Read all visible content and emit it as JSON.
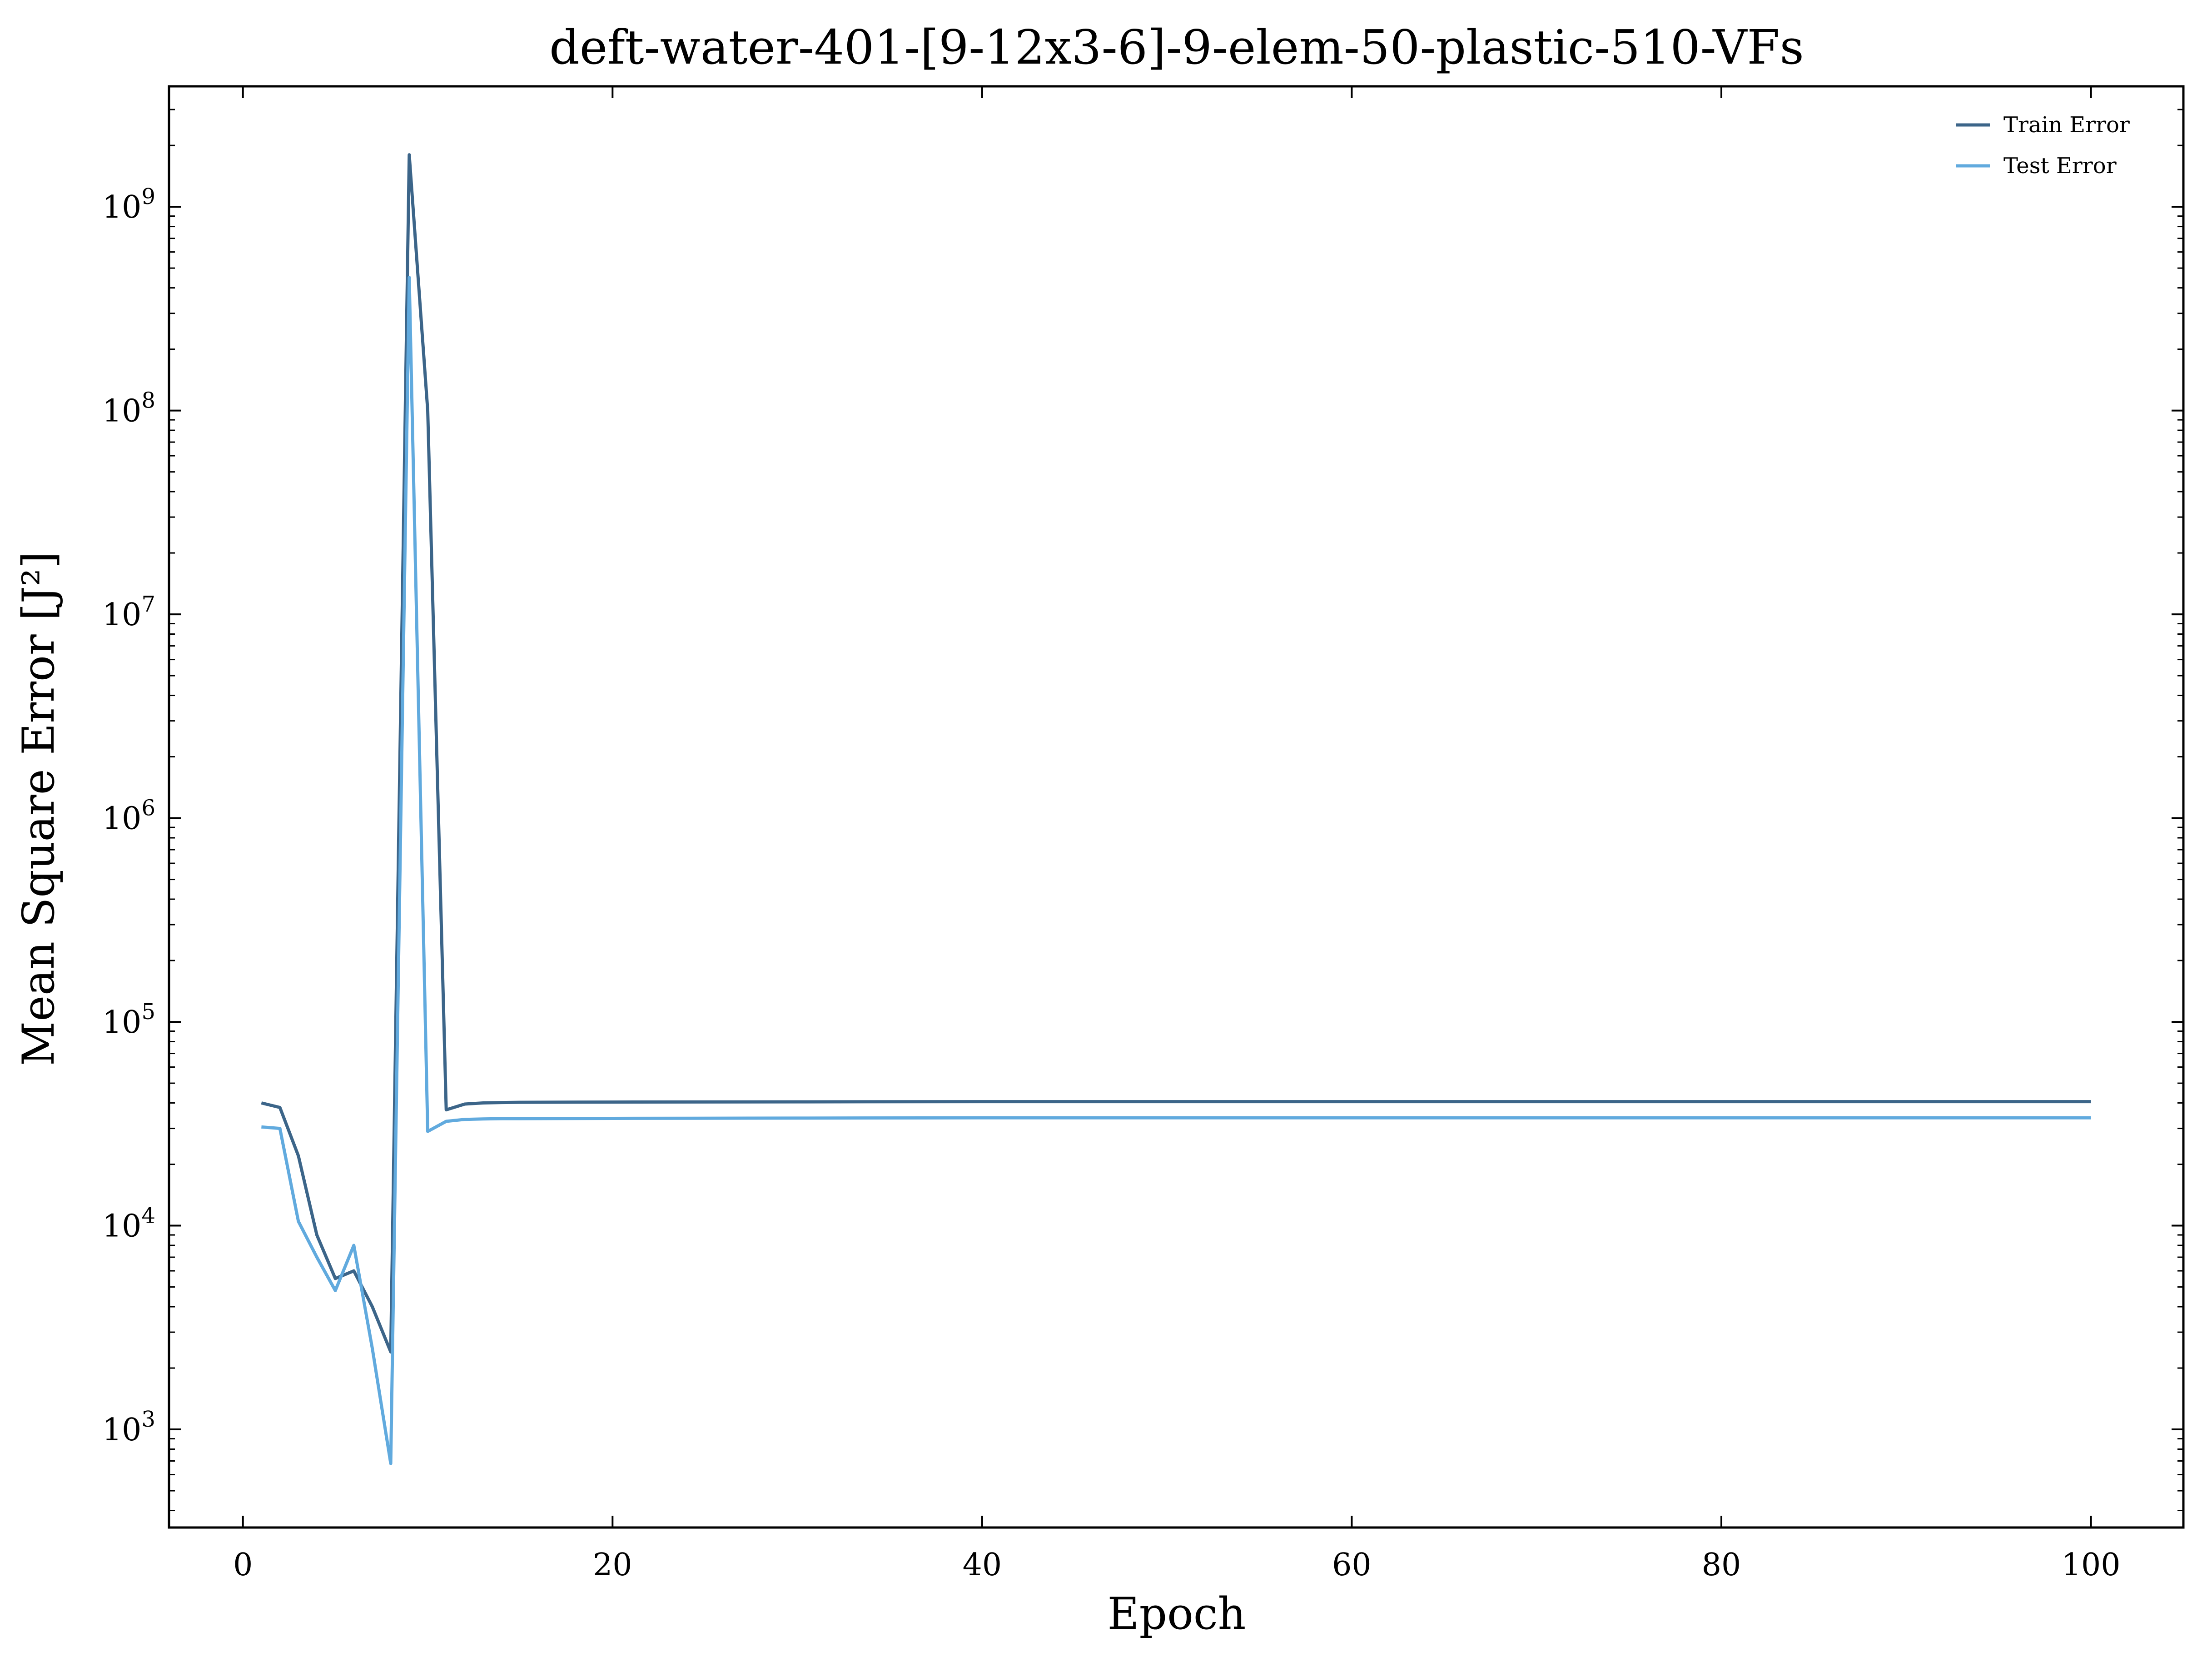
{
  "chart_data": {
    "type": "line",
    "title": "deft-water-401-[9-12x3-6]-9-elem-50-plastic-510-VFs",
    "xlabel": "Epoch",
    "ylabel": "Mean Square Error [J²]",
    "y_scale": "log",
    "xlim": [
      -4,
      105
    ],
    "ylim": [
      330,
      3900000000
    ],
    "x_ticks": [
      0,
      20,
      40,
      60,
      80,
      100
    ],
    "x_tick_labels": [
      "0",
      "20",
      "40",
      "60",
      "80",
      "100"
    ],
    "y_ticks": [
      1000,
      10000,
      100000,
      1000000,
      10000000,
      100000000,
      1000000000
    ],
    "y_tick_bases": [
      "10",
      "10",
      "10",
      "10",
      "10",
      "10",
      "10"
    ],
    "y_tick_exponents": [
      "3",
      "4",
      "5",
      "6",
      "7",
      "8",
      "9"
    ],
    "grid": false,
    "legend_position": "top-right",
    "series": [
      {
        "name": "Train Error",
        "color": "#3c6589",
        "x": [
          1,
          2,
          3,
          4,
          5,
          6,
          7,
          8,
          9,
          10,
          11,
          12,
          13,
          14,
          15,
          20,
          30,
          40,
          50,
          60,
          70,
          80,
          90,
          100
        ],
        "y": [
          40000,
          38000,
          22000,
          9000,
          5500,
          6000,
          4000,
          2400,
          1800000000,
          100000000,
          37000,
          39500,
          40000,
          40200,
          40300,
          40400,
          40500,
          40600,
          40600,
          40600,
          40600,
          40600,
          40600,
          40600
        ]
      },
      {
        "name": "Test Error",
        "color": "#61aade",
        "x": [
          1,
          2,
          3,
          4,
          5,
          6,
          7,
          8,
          9,
          10,
          11,
          12,
          13,
          14,
          15,
          20,
          30,
          40,
          50,
          60,
          70,
          80,
          90,
          100
        ],
        "y": [
          30500,
          30000,
          10500,
          7000,
          4800,
          8000,
          2500,
          680,
          450000000,
          29000,
          32500,
          33200,
          33400,
          33500,
          33500,
          33600,
          33700,
          33800,
          33800,
          33800,
          33800,
          33800,
          33800,
          33800
        ]
      }
    ]
  }
}
